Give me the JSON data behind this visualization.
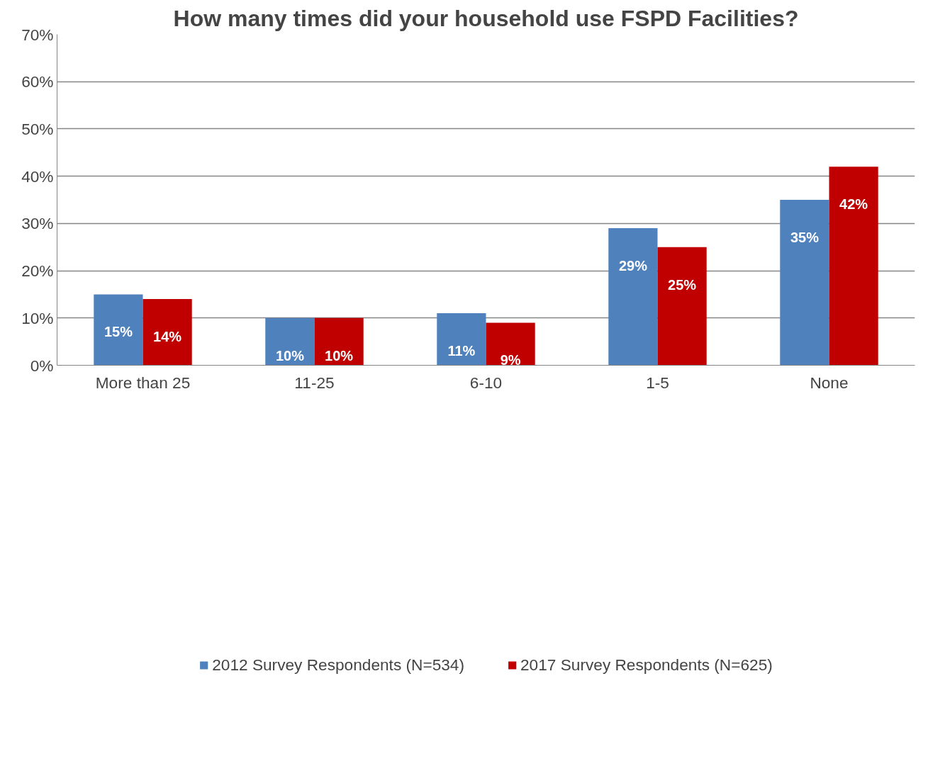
{
  "chart_data": {
    "type": "bar",
    "title": "How many times did your household use FSPD Facilities?",
    "categories": [
      "More than 25",
      "11-25",
      "6-10",
      "1-5",
      "None"
    ],
    "series": [
      {
        "name": "2012 Survey Respondents (N=534)",
        "color": "#4f81bd",
        "values": [
          15,
          10,
          11,
          29,
          35
        ],
        "value_labels": [
          "15%",
          "10%",
          "11%",
          "29%",
          "35%"
        ]
      },
      {
        "name": "2017 Survey Respondents (N=625)",
        "color": "#c00000",
        "values": [
          14,
          10,
          9,
          25,
          42
        ],
        "value_labels": [
          "14%",
          "10%",
          "9%",
          "25%",
          "42%"
        ]
      }
    ],
    "ylim": [
      0,
      70
    ],
    "yticks": [
      {
        "value": 0,
        "label": "0%"
      },
      {
        "value": 10,
        "label": "10%"
      },
      {
        "value": 20,
        "label": "20%"
      },
      {
        "value": 30,
        "label": "30%"
      },
      {
        "value": 40,
        "label": "40%"
      },
      {
        "value": 50,
        "label": "50%"
      },
      {
        "value": 60,
        "label": "60%"
      },
      {
        "value": 70,
        "label": "70%"
      }
    ],
    "grid": "y",
    "legend": "bottom"
  }
}
